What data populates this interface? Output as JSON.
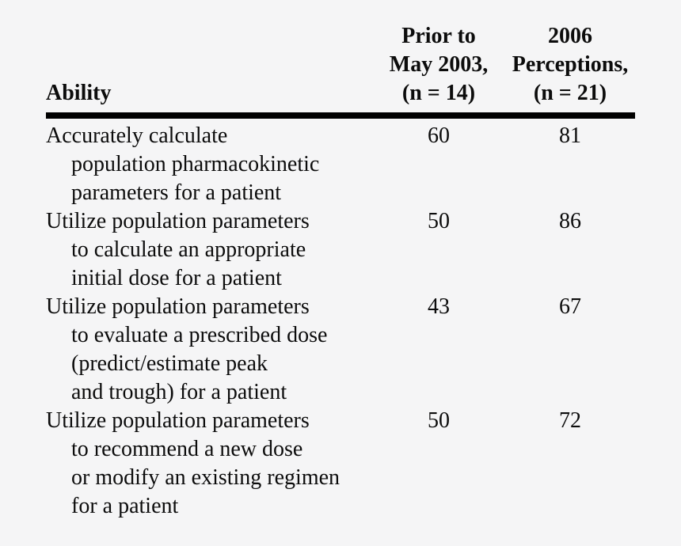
{
  "page": {
    "background_color": "#f5f5f6",
    "text_color": "#0c0c0c",
    "rule_color": "#000000"
  },
  "table": {
    "columns": [
      {
        "id": "ability",
        "label": "Ability"
      },
      {
        "id": "prior_may_2003",
        "label": "Prior to\nMay 2003,\n(n = 14)"
      },
      {
        "id": "perceptions_2006",
        "label": "2006\nPerceptions,\n(n = 21)"
      }
    ],
    "rows": [
      {
        "ability": "Accurately calculate\npopulation pharmacokinetic\nparameters for a patient",
        "prior_may_2003": "60",
        "perceptions_2006": "81"
      },
      {
        "ability": "Utilize population parameters\nto calculate an appropriate\ninitial dose for a patient",
        "prior_may_2003": "50",
        "perceptions_2006": "86"
      },
      {
        "ability": "Utilize population parameters\nto evaluate a prescribed dose\n(predict/estimate peak\nand trough) for a patient",
        "prior_may_2003": "43",
        "perceptions_2006": "67"
      },
      {
        "ability": "Utilize population parameters\nto recommend a new dose\nor modify an existing regimen\nfor a patient",
        "prior_may_2003": "50",
        "perceptions_2006": "72"
      }
    ]
  }
}
